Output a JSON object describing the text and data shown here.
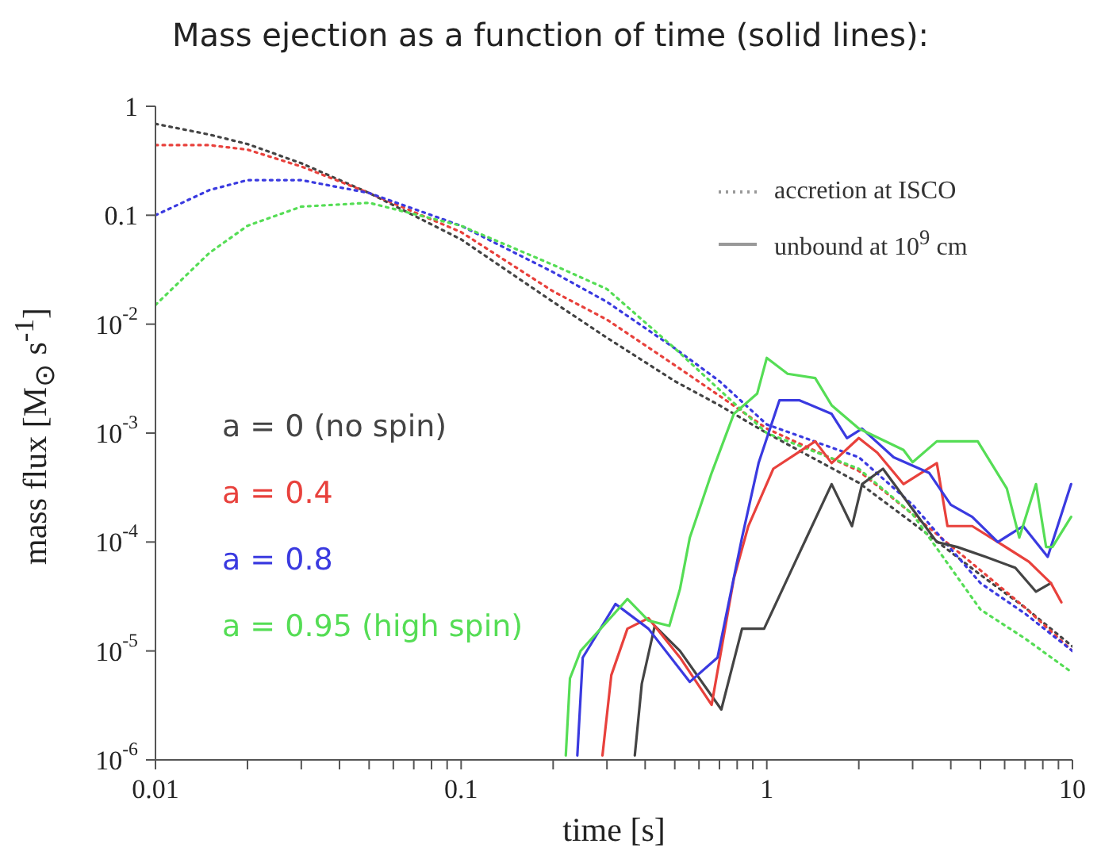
{
  "chart_data": {
    "type": "line",
    "title": "Mass ejection as a function of time (solid lines):",
    "xlabel": "time [s]",
    "ylabel": "mass flux [M$_{⊙}$ s$^{-1}$]",
    "log": "xy",
    "marker": "none",
    "xlim": [
      0.01,
      10
    ],
    "ylim": [
      1e-06,
      1
    ],
    "xticks": [
      0.01,
      {
        "value": 0.02,
        "label": null
      },
      {
        "value": 0.03,
        "label": null
      },
      {
        "value": 0.04,
        "label": null
      },
      {
        "value": 0.05,
        "label": null
      },
      {
        "value": 0.06,
        "label": null
      },
      {
        "value": 0.07,
        "label": null
      },
      {
        "value": 0.08,
        "label": null
      },
      {
        "value": 0.09,
        "label": null
      },
      0.1,
      {
        "value": 0.2,
        "label": null
      },
      {
        "value": 0.3,
        "label": null
      },
      {
        "value": 0.4,
        "label": null
      },
      {
        "value": 0.5,
        "label": null
      },
      {
        "value": 0.6,
        "label": null
      },
      {
        "value": 0.7,
        "label": null
      },
      {
        "value": 0.8,
        "label": null
      },
      {
        "value": 0.9,
        "label": null
      },
      1,
      {
        "value": 2,
        "label": null
      },
      {
        "value": 3,
        "label": null
      },
      {
        "value": 4,
        "label": null
      },
      {
        "value": 5,
        "label": null
      },
      {
        "value": 6,
        "label": null
      },
      {
        "value": 7,
        "label": null
      },
      {
        "value": 8,
        "label": null
      },
      {
        "value": 9,
        "label": null
      },
      10
    ],
    "yticks": [
      {
        "value": 1e-06,
        "label": "10$^{-6}$"
      },
      {
        "value": 1e-05,
        "label": "10$^{-5}$"
      },
      {
        "value": 0.0001,
        "label": "10$^{-4}$"
      },
      {
        "value": 0.001,
        "label": "10$^{-3}$"
      },
      {
        "value": 0.01,
        "label": "10$^{-2}$"
      },
      0.1,
      1
    ],
    "annotations": [
      "accretion at ISCO",
      "unbound at 10$^{9}$ cm"
    ],
    "series": [
      {
        "color": "#444444",
        "line_style": "dotted",
        "x": [
          0.01,
          0.015,
          0.02,
          0.03,
          0.05,
          0.1,
          0.2,
          0.3,
          0.5,
          0.7,
          1,
          2,
          3,
          5,
          7,
          10
        ],
        "values": [
          0.69,
          0.55,
          0.45,
          0.3,
          0.16,
          0.06,
          0.016,
          0.0075,
          0.003,
          0.0018,
          0.001,
          0.00035,
          0.00015,
          5e-05,
          2.5e-05,
          1.1e-05
        ]
      },
      {
        "color": "#e8413c",
        "line_style": "dotted",
        "x": [
          0.01,
          0.015,
          0.02,
          0.03,
          0.05,
          0.1,
          0.2,
          0.3,
          0.5,
          0.7,
          1,
          2,
          3,
          5,
          7,
          10
        ],
        "values": [
          0.44,
          0.44,
          0.4,
          0.28,
          0.16,
          0.07,
          0.02,
          0.011,
          0.0042,
          0.0022,
          0.0011,
          0.00045,
          0.00018,
          5.5e-05,
          2.5e-05,
          1e-05
        ]
      },
      {
        "color": "#3a3ae0",
        "line_style": "dotted",
        "x": [
          0.01,
          0.015,
          0.02,
          0.03,
          0.05,
          0.1,
          0.2,
          0.3,
          0.5,
          0.7,
          1,
          2,
          3,
          5,
          7,
          10
        ],
        "values": [
          0.1,
          0.17,
          0.21,
          0.21,
          0.16,
          0.08,
          0.03,
          0.016,
          0.006,
          0.003,
          0.0012,
          0.0006,
          0.00022,
          4.2e-05,
          2.2e-05,
          1e-05
        ]
      },
      {
        "color": "#55dd55",
        "line_style": "dotted",
        "x": [
          0.01,
          0.015,
          0.02,
          0.03,
          0.05,
          0.1,
          0.2,
          0.3,
          0.5,
          0.7,
          1,
          2,
          3,
          5,
          7,
          10
        ],
        "values": [
          0.015,
          0.045,
          0.08,
          0.12,
          0.13,
          0.08,
          0.035,
          0.021,
          0.006,
          0.0025,
          0.001,
          0.00047,
          0.00018,
          2.4e-05,
          1.3e-05,
          6.3e-06
        ]
      },
      {
        "name": "a = 0 (no spin)",
        "color": "#444444",
        "line_style": "solid",
        "x": [
          0.37,
          0.39,
          0.43,
          0.52,
          0.71,
          0.83,
          0.98,
          1.24,
          1.63,
          1.9,
          2.05,
          2.4,
          3.0,
          3.6,
          4.2,
          5.2,
          6.5,
          7.6,
          8.5
        ],
        "values": [
          1.1e-06,
          5e-06,
          1.7e-05,
          1e-05,
          2.9e-06,
          1.6e-05,
          1.6e-05,
          6.6e-05,
          0.00034,
          0.00014,
          0.00034,
          0.00047,
          0.0002,
          0.0001,
          9e-05,
          7.3e-05,
          5.8e-05,
          3.5e-05,
          4.2e-05
        ]
      },
      {
        "name": "a = 0.4",
        "color": "#e8413c",
        "line_style": "solid",
        "x": [
          0.29,
          0.31,
          0.35,
          0.41,
          0.52,
          0.66,
          0.78,
          0.87,
          1.05,
          1.44,
          1.63,
          2.0,
          2.3,
          2.8,
          3.6,
          3.9,
          4.7,
          5.7,
          7.2,
          8.5,
          9.2
        ],
        "values": [
          1.1e-06,
          6e-06,
          1.6e-05,
          2e-05,
          8.7e-06,
          3.2e-06,
          4.6e-05,
          0.00014,
          0.00047,
          0.00084,
          0.00053,
          0.0009,
          0.00066,
          0.00034,
          0.00053,
          0.00014,
          0.00014,
          0.0001,
          6.6e-05,
          4.2e-05,
          2.8e-05
        ]
      },
      {
        "name": "a = 0.8",
        "color": "#3a3ae0",
        "line_style": "solid",
        "x": [
          0.24,
          0.25,
          0.32,
          0.41,
          0.56,
          0.69,
          0.83,
          0.94,
          1.1,
          1.28,
          1.63,
          1.83,
          2.05,
          2.6,
          3.4,
          4.0,
          4.7,
          5.7,
          6.9,
          8.3,
          9.9
        ],
        "values": [
          1.1e-06,
          8.7e-06,
          2.7e-05,
          1.6e-05,
          5.2e-06,
          8.7e-06,
          0.00011,
          0.00053,
          0.002,
          0.002,
          0.0015,
          0.0009,
          0.0011,
          0.0006,
          0.00043,
          0.00022,
          0.00017,
          0.0001,
          0.00014,
          7.3e-05,
          0.00034
        ]
      },
      {
        "name": "a = 0.95 (high spin)",
        "color": "#55dd55",
        "line_style": "solid",
        "x": [
          0.22,
          0.227,
          0.246,
          0.35,
          0.41,
          0.48,
          0.52,
          0.56,
          0.66,
          0.78,
          0.93,
          1.0,
          1.17,
          1.44,
          1.63,
          2.0,
          2.8,
          3.0,
          3.6,
          4.9,
          6.1,
          6.7,
          7.6,
          8.2,
          8.6,
          9.9
        ],
        "values": [
          1.1e-06,
          5.6e-06,
          1e-05,
          3e-05,
          1.9e-05,
          1.7e-05,
          3.7e-05,
          0.00011,
          0.00043,
          0.0015,
          0.0023,
          0.0049,
          0.0035,
          0.0032,
          0.0018,
          0.0011,
          0.0007,
          0.00054,
          0.00084,
          0.00084,
          0.00031,
          0.00011,
          0.00034,
          9e-05,
          9e-05,
          0.00017
        ]
      }
    ]
  }
}
